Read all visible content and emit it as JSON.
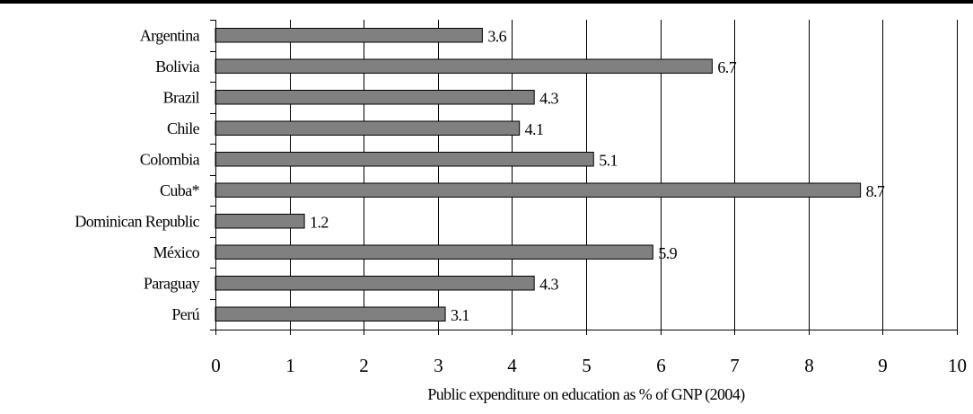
{
  "chart_data": {
    "type": "bar",
    "orientation": "horizontal",
    "title": "",
    "xlabel": "Public expenditure on education as % of GNP (2004)",
    "ylabel": "",
    "categories": [
      "Argentina",
      "Bolivia",
      "Brazil",
      "Chile",
      "Colombia",
      "Cuba*",
      "Dominican Republic",
      "México",
      "Paraguay",
      "Perú"
    ],
    "values": [
      3.6,
      6.7,
      4.3,
      4.1,
      5.1,
      8.7,
      1.2,
      5.9,
      4.3,
      3.1
    ],
    "value_labels": [
      "3.6",
      "6.7",
      "4.3",
      "4.1",
      "5.1",
      "8.7",
      "1.2",
      "5.9",
      "4.3",
      "3.1"
    ],
    "xlim": [
      0,
      10
    ],
    "x_ticks": [
      0,
      1,
      2,
      3,
      4,
      5,
      6,
      7,
      8,
      9,
      10
    ],
    "x_tick_labels": [
      "0",
      "1",
      "2",
      "3",
      "4",
      "5",
      "6",
      "7",
      "8",
      "9",
      "10"
    ],
    "grid": "vertical",
    "legend": "none",
    "colors": {
      "bar_fill": "#808080",
      "bar_stroke": "#000000",
      "gridline": "#000000",
      "text": "#000000",
      "background": "#ffffff"
    }
  }
}
